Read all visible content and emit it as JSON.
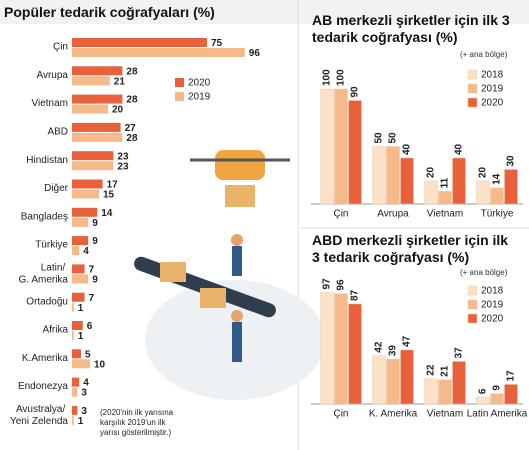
{
  "chart_data": [
    {
      "type": "hbar",
      "title": "Popüler tedarik coğrafyaları (%)",
      "note": "(2020'nin ilk yarısına karşılık 2019'un ilk yarısı gösterilmiştir.)",
      "categories": [
        "Çin",
        "Avrupa",
        "Vietnam",
        "ABD",
        "Hindistan",
        "Diğer",
        "Bangladeş",
        "Türkiye",
        "Latin/ G. Amerika",
        "Ortadoğu",
        "Afrika",
        "K.Amerika",
        "Endonezya",
        "Avustralya/ Yeni Zelenda"
      ],
      "series": [
        {
          "name": "2020",
          "color": "#e8613a",
          "values": [
            75,
            28,
            28,
            27,
            23,
            17,
            14,
            9,
            7,
            7,
            6,
            5,
            4,
            3
          ]
        },
        {
          "name": "2019",
          "color": "#f6b98a",
          "values": [
            96,
            21,
            20,
            28,
            23,
            15,
            9,
            4,
            9,
            1,
            1,
            10,
            3,
            1
          ]
        }
      ],
      "xlim": [
        0,
        100
      ]
    },
    {
      "type": "vbar",
      "title": "AB merkezli şirketler için ilk 3 tedarik coğrafyası (%)",
      "subtitle": "(+ ana bölge)",
      "categories": [
        "Çin",
        "Avrupa",
        "Vietnam",
        "Türkiye"
      ],
      "series": [
        {
          "name": "2018",
          "color": "#fbe1c8",
          "values": [
            100,
            50,
            20,
            20
          ]
        },
        {
          "name": "2019",
          "color": "#f6b98a",
          "values": [
            100,
            50,
            11,
            14
          ]
        },
        {
          "name": "2020",
          "color": "#e8613a",
          "values": [
            90,
            40,
            40,
            30
          ]
        }
      ],
      "ylim": [
        0,
        100
      ]
    },
    {
      "type": "vbar",
      "title": "ABD merkezli şirketler için ilk 3 tedarik coğrafyası (%)",
      "subtitle": "(+ ana bölge)",
      "categories": [
        "Çin",
        "K. Amerika",
        "Vietnam",
        "Latin Amerika"
      ],
      "series": [
        {
          "name": "2018",
          "color": "#fbe1c8",
          "values": [
            97,
            42,
            22,
            6
          ]
        },
        {
          "name": "2019",
          "color": "#f6b98a",
          "values": [
            96,
            39,
            21,
            9
          ]
        },
        {
          "name": "2020",
          "color": "#e8613a",
          "values": [
            87,
            47,
            37,
            17
          ]
        }
      ],
      "ylim": [
        0,
        100
      ]
    }
  ]
}
